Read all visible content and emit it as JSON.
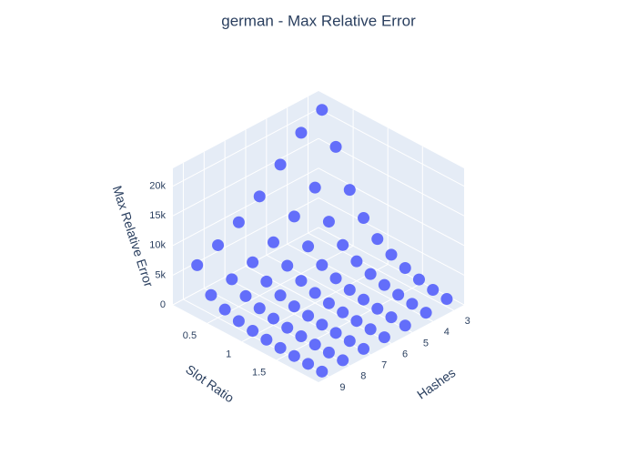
{
  "chart_data": {
    "type": "scatter3d",
    "title": "german - Max Relative Error",
    "x_label": "Slot Ratio",
    "y_label": "Hashes",
    "z_label": "Max Relative Error",
    "color": "#636efa",
    "xlim": [
      0,
      2.1
    ],
    "ylim": [
      2.5,
      9.5
    ],
    "zlim": [
      0,
      23000
    ],
    "xticks": [
      0.5,
      1,
      1.5
    ],
    "yticks": [
      3,
      4,
      5,
      6,
      7,
      8,
      9
    ],
    "zticks": [
      0,
      {
        "value": 5000,
        "label": "5k"
      },
      {
        "value": 10000,
        "label": "10k"
      },
      {
        "value": 15000,
        "label": "15k"
      },
      {
        "value": 20000,
        "label": "20k"
      }
    ],
    "x": [
      0.2,
      0.2,
      0.2,
      0.2,
      0.2,
      0.2,
      0.2,
      0.4,
      0.4,
      0.4,
      0.4,
      0.4,
      0.4,
      0.4,
      0.6,
      0.6,
      0.6,
      0.6,
      0.6,
      0.6,
      0.6,
      0.8,
      0.8,
      0.8,
      0.8,
      0.8,
      0.8,
      0.8,
      1,
      1,
      1,
      1,
      1,
      1,
      1,
      1.2,
      1.2,
      1.2,
      1.2,
      1.2,
      1.2,
      1.2,
      1.4,
      1.4,
      1.4,
      1.4,
      1.4,
      1.4,
      1.4,
      1.6,
      1.6,
      1.6,
      1.6,
      1.6,
      1.6,
      1.6,
      1.8,
      1.8,
      1.8,
      1.8,
      1.8,
      1.8,
      1.8,
      2,
      2,
      2,
      2,
      2,
      2,
      2
    ],
    "y": [
      3,
      4,
      5,
      6,
      7,
      8,
      9,
      3,
      4,
      5,
      6,
      7,
      8,
      9,
      3,
      4,
      5,
      6,
      7,
      8,
      9,
      3,
      4,
      5,
      6,
      7,
      8,
      9,
      3,
      4,
      5,
      6,
      7,
      8,
      9,
      3,
      4,
      5,
      6,
      7,
      8,
      9,
      3,
      4,
      5,
      6,
      7,
      8,
      9,
      3,
      4,
      5,
      6,
      7,
      8,
      9,
      3,
      4,
      5,
      6,
      7,
      8,
      9,
      3,
      4,
      5,
      6,
      7,
      8,
      9
    ],
    "z": [
      22000,
      20000,
      16500,
      13000,
      10500,
      8500,
      7000,
      17000,
      12000,
      9000,
      6500,
      5000,
      4000,
      3200,
      11000,
      7500,
      5200,
      3800,
      3000,
      2400,
      2000,
      7500,
      4800,
      3300,
      2500,
      1900,
      1600,
      1300,
      5200,
      3300,
      2300,
      1700,
      1300,
      1100,
      900,
      3800,
      2400,
      1600,
      1200,
      950,
      800,
      650,
      2800,
      1800,
      1200,
      900,
      700,
      600,
      500,
      2100,
      1400,
      900,
      700,
      550,
      450,
      380,
      1600,
      1100,
      700,
      550,
      430,
      350,
      300,
      1300,
      850,
      550,
      430,
      340,
      280,
      240
    ]
  }
}
